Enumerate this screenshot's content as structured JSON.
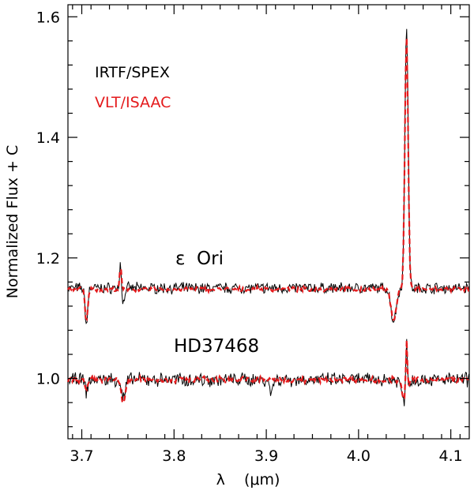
{
  "chart_data": {
    "type": "line",
    "title": "",
    "xlabel": "λ    (μm)",
    "ylabel": "Normalized Flux + C",
    "xlim": [
      3.685,
      4.12
    ],
    "ylim": [
      0.9,
      1.62
    ],
    "xticks": [
      3.7,
      3.8,
      3.9,
      4.0,
      4.1
    ],
    "xtick_labels": [
      "3.7",
      "3.8",
      "3.9",
      "4.0",
      "4.1"
    ],
    "yticks": [
      1.0,
      1.2,
      1.4,
      1.6
    ],
    "ytick_labels": [
      "1.0",
      "1.2",
      "1.4",
      "1.6"
    ],
    "legend": [
      {
        "label": "IRTF/SPEX",
        "color": "#000000",
        "style": "solid"
      },
      {
        "label": "VLT/ISAAC",
        "color": "#e41a1c",
        "style": "dashed"
      }
    ],
    "annotations": [
      {
        "text": "ε  Ori",
        "x": 3.785,
        "y": 1.2
      },
      {
        "text": "HD37468",
        "x": 3.785,
        "y": 1.045
      }
    ],
    "series": [
      {
        "name": "IRTF/SPEX (ε Ori)",
        "color": "#000000",
        "style": "solid",
        "baseline": 1.15,
        "features": [
          {
            "x": 3.705,
            "depth": -0.06,
            "width": 0.002
          },
          {
            "x": 3.742,
            "depth": 0.045,
            "width": 0.0012
          },
          {
            "x": 3.745,
            "depth": -0.025,
            "width": 0.002
          },
          {
            "x": 4.038,
            "depth": -0.055,
            "width": 0.004
          },
          {
            "x": 4.052,
            "depth": 0.44,
            "width": 0.0025
          }
        ],
        "noise": 0.007
      },
      {
        "name": "VLT/ISAAC (ε Ori)",
        "color": "#e41a1c",
        "style": "dashed",
        "baseline": 1.148,
        "features": [
          {
            "x": 3.705,
            "depth": -0.055,
            "width": 0.002
          },
          {
            "x": 3.742,
            "depth": 0.04,
            "width": 0.0012
          },
          {
            "x": 4.038,
            "depth": -0.05,
            "width": 0.004
          },
          {
            "x": 4.052,
            "depth": 0.42,
            "width": 0.0025
          }
        ],
        "noise": 0.003
      },
      {
        "name": "IRTF/SPEX (HD37468)",
        "color": "#000000",
        "style": "solid",
        "baseline": 0.998,
        "features": [
          {
            "x": 3.705,
            "depth": -0.02,
            "width": 0.002
          },
          {
            "x": 3.745,
            "depth": -0.03,
            "width": 0.003
          },
          {
            "x": 3.905,
            "depth": -0.025,
            "width": 0.002
          },
          {
            "x": 4.052,
            "depth": 0.11,
            "width": 0.0012
          },
          {
            "x": 4.05,
            "depth": -0.04,
            "width": 0.004
          }
        ],
        "noise": 0.009
      },
      {
        "name": "VLT/ISAAC (HD37468)",
        "color": "#e41a1c",
        "style": "dashed",
        "baseline": 0.998,
        "features": [
          {
            "x": 3.705,
            "depth": -0.02,
            "width": 0.002
          },
          {
            "x": 3.745,
            "depth": -0.04,
            "width": 0.003
          },
          {
            "x": 4.052,
            "depth": 0.09,
            "width": 0.0012
          },
          {
            "x": 4.05,
            "depth": -0.035,
            "width": 0.004
          }
        ],
        "noise": 0.004
      }
    ]
  }
}
